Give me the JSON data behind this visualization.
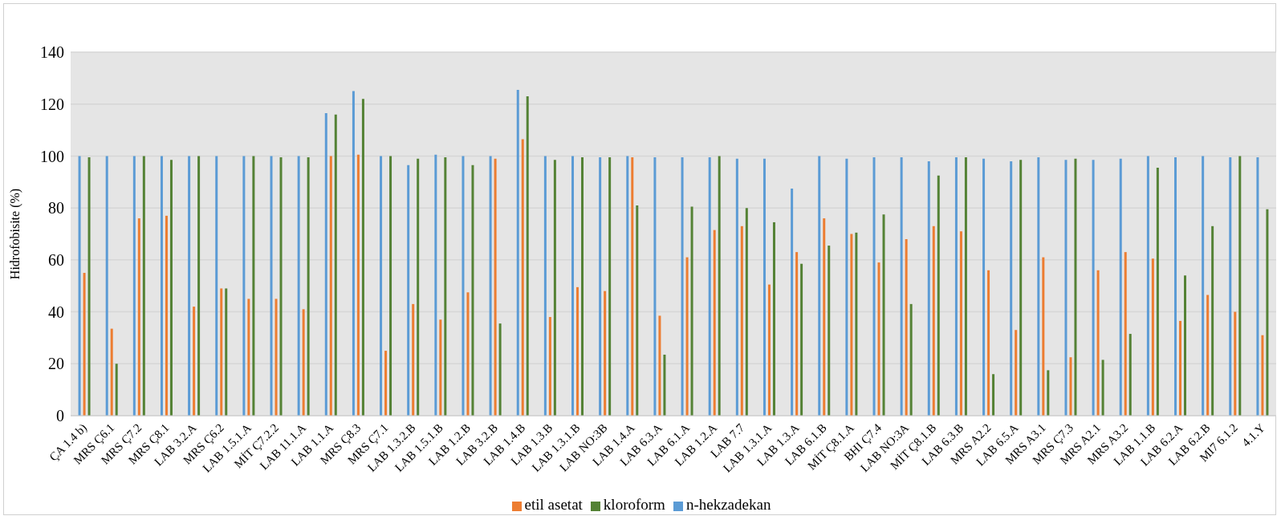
{
  "chart_data": {
    "type": "bar",
    "ylabel": "Hidrofobisite (%)",
    "categories": [
      "ÇA 1.4 b)",
      "MRS Ç6.1",
      "MRS Ç7.2",
      "MRS Ç8.1",
      "LAB 3.2.A",
      "MRS Ç6.2",
      "LAB 1.5.1.A",
      "MİT Ç7.2.2",
      "LAB 11.1.A",
      "LAB 1.1.A",
      "MRS Ç8.3",
      "MRS Ç7.1",
      "LAB 1.3.2.B",
      "LAB 1.5.1.B",
      "LAB 1.2.B",
      "LAB 3.2.B",
      "LAB 1.4.B",
      "LAB 1.3.B",
      "LAB 1.3.1.B",
      "LAB NO:3B",
      "LAB 1.4.A",
      "LAB 6.3.A",
      "LAB 6.1.A",
      "LAB 1.2.A",
      "LAB 7.7",
      "LAB 1.3.1.A",
      "LAB 1.3.A",
      "LAB 6.1.B",
      "MİT Ç8.1.A",
      "BHI Ç7.4",
      "LAB NO:3A",
      "MİT Ç8.1.B",
      "LAB 6.3.B",
      "MRS A2.2",
      "LAB 6.5.A",
      "MRS A3.1",
      "MRS Ç7.3",
      "MRS A2.1",
      "MRS A3.2",
      "LAB 1.1.B",
      "LAB 6.2.A",
      "LAB 6.2.B",
      "MI7 6.1.2",
      "4.1.Y"
    ],
    "series": [
      {
        "name": "n-hekzadekan",
        "color": "#5b9bd5",
        "values": [
          100,
          100,
          100,
          100,
          100,
          100,
          100,
          100,
          100,
          116.5,
          125,
          100,
          96.5,
          100.5,
          100,
          100,
          125.5,
          100,
          100,
          99.5,
          100,
          99.5,
          99.5,
          99.5,
          99,
          99,
          87.5,
          100,
          99,
          99.5,
          99.5,
          98,
          99.5,
          99,
          98,
          99.5,
          98.5,
          98.5,
          99,
          100,
          99.5,
          100,
          99.5,
          99.5
        ]
      },
      {
        "name": "etil asetat",
        "color": "#ed7d31",
        "values": [
          55,
          33.5,
          76,
          77,
          42,
          49,
          45,
          45,
          41,
          100,
          100.5,
          25,
          43,
          37,
          47.5,
          99,
          106.5,
          38,
          49.5,
          48,
          99.5,
          38.5,
          61,
          71.5,
          73,
          50.5,
          63,
          76,
          70,
          59,
          68,
          73,
          71,
          56,
          33,
          61,
          22.5,
          56,
          63,
          60.5,
          36.5,
          46.5,
          40,
          31
        ]
      },
      {
        "name": "kloroform",
        "color": "#548235",
        "values": [
          99.5,
          20,
          100,
          98.5,
          100,
          49,
          100,
          99.5,
          99.5,
          116,
          122,
          100,
          99,
          99.5,
          96.5,
          35.5,
          123,
          98.5,
          99.5,
          99.5,
          81,
          23.5,
          80.5,
          100,
          80,
          74.5,
          58.5,
          65.5,
          70.5,
          77.5,
          43,
          92.5,
          99.5,
          16,
          98.5,
          17.5,
          99,
          21.5,
          31.5,
          95.5,
          54,
          73,
          100,
          79.5
        ]
      }
    ],
    "ylim": [
      0,
      140
    ],
    "yticks": [
      0,
      20,
      40,
      60,
      80,
      100,
      120,
      140
    ],
    "grid": "y",
    "legend": "bottom"
  }
}
